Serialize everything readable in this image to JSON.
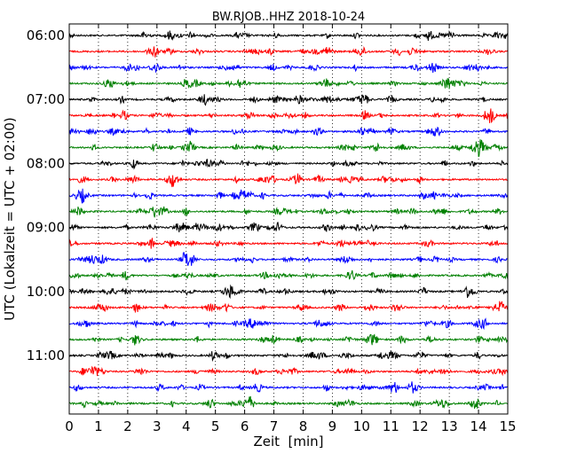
{
  "chart_data": {
    "type": "line",
    "title": "BW.RJOB..HHZ 2018-10-24",
    "xlabel": "Zeit  [min]",
    "ylabel": "UTC (Lokalzeit = UTC + 02:00)",
    "xlim": [
      0,
      15
    ],
    "x_ticks": [
      "0",
      "1",
      "2",
      "3",
      "4",
      "5",
      "6",
      "7",
      "8",
      "9",
      "10",
      "11",
      "12",
      "13",
      "14",
      "15"
    ],
    "y_tick_labels": [
      "06:00",
      "07:00",
      "08:00",
      "09:00",
      "10:00",
      "11:00"
    ],
    "grid": "vertical dotted lines at each minute",
    "trace_interval_minutes": 15,
    "trace_colors": [
      "#000000",
      "#ff0000",
      "#0000ff",
      "#008000"
    ],
    "series": [
      {
        "start": "06:00"
      },
      {
        "start": "06:15"
      },
      {
        "start": "06:30"
      },
      {
        "start": "06:45"
      },
      {
        "start": "07:00"
      },
      {
        "start": "07:15"
      },
      {
        "start": "07:30"
      },
      {
        "start": "07:45"
      },
      {
        "start": "08:00"
      },
      {
        "start": "08:15"
      },
      {
        "start": "08:30"
      },
      {
        "start": "08:45"
      },
      {
        "start": "09:00"
      },
      {
        "start": "09:15"
      },
      {
        "start": "09:30"
      },
      {
        "start": "09:45"
      },
      {
        "start": "10:00"
      },
      {
        "start": "10:15"
      },
      {
        "start": "10:30"
      },
      {
        "start": "10:45"
      },
      {
        "start": "11:00"
      },
      {
        "start": "11:15"
      },
      {
        "start": "11:30"
      },
      {
        "start": "11:45"
      }
    ]
  }
}
